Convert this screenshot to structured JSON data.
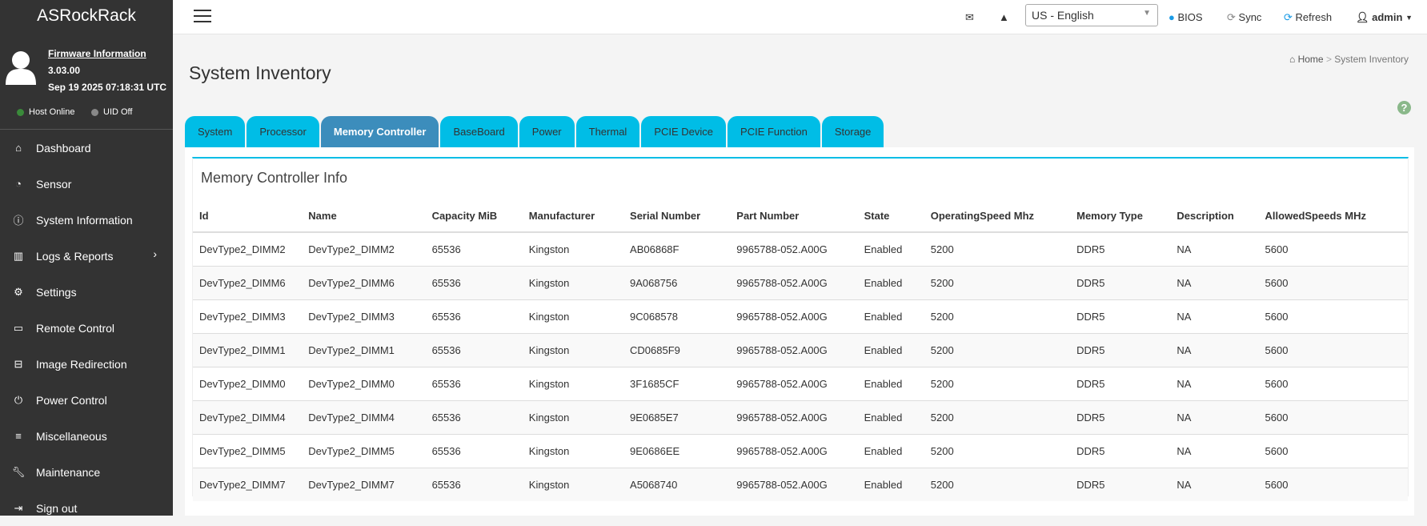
{
  "brand": "ASRockRack",
  "firmware": {
    "label": "Firmware Information",
    "version": "3.03.00",
    "date": "Sep 19 2025 07:18:31 UTC"
  },
  "status": {
    "host": "Host Online",
    "host_color": "#3a8a3a",
    "uid": "UID Off",
    "uid_color": "#888888"
  },
  "sidebar": {
    "items": [
      {
        "label": "Dashboard",
        "icon": "home-icon"
      },
      {
        "label": "Sensor",
        "icon": "gauge-icon"
      },
      {
        "label": "System Information",
        "icon": "info-icon"
      },
      {
        "label": "Logs & Reports",
        "icon": "bar-chart-icon"
      },
      {
        "label": "Settings",
        "icon": "gear-icon"
      },
      {
        "label": "Remote Control",
        "icon": "monitor-icon"
      },
      {
        "label": "Image Redirection",
        "icon": "drive-icon"
      },
      {
        "label": "Power Control",
        "icon": "power-icon"
      },
      {
        "label": "Miscellaneous",
        "icon": "list-icon"
      },
      {
        "label": "Maintenance",
        "icon": "wrench-icon"
      },
      {
        "label": "Sign out",
        "icon": "sign-out-icon"
      }
    ]
  },
  "header": {
    "language": "US - English",
    "bios": "BIOS",
    "sync": "Sync",
    "refresh": "Refresh",
    "user": "admin"
  },
  "page": {
    "title": "System Inventory",
    "breadcrumb": [
      "Home",
      "System Inventory"
    ]
  },
  "tabs": [
    "System",
    "Processor",
    "Memory Controller",
    "BaseBoard",
    "Power",
    "Thermal",
    "PCIE Device",
    "PCIE Function",
    "Storage"
  ],
  "active_tab": "Memory Controller",
  "panel": {
    "title": "Memory Controller Info"
  },
  "table": {
    "columns": [
      "Id",
      "Name",
      "Capacity MiB",
      "Manufacturer",
      "Serial Number",
      "Part Number",
      "State",
      "OperatingSpeed Mhz",
      "Memory Type",
      "Description",
      "AllowedSpeeds MHz"
    ],
    "rows": [
      [
        "DevType2_DIMM2",
        "DevType2_DIMM2",
        "65536",
        "Kingston",
        "AB06868F",
        "9965788-052.A00G",
        "Enabled",
        "5200",
        "DDR5",
        "NA",
        "5600"
      ],
      [
        "DevType2_DIMM6",
        "DevType2_DIMM6",
        "65536",
        "Kingston",
        "9A068756",
        "9965788-052.A00G",
        "Enabled",
        "5200",
        "DDR5",
        "NA",
        "5600"
      ],
      [
        "DevType2_DIMM3",
        "DevType2_DIMM3",
        "65536",
        "Kingston",
        "9C068578",
        "9965788-052.A00G",
        "Enabled",
        "5200",
        "DDR5",
        "NA",
        "5600"
      ],
      [
        "DevType2_DIMM1",
        "DevType2_DIMM1",
        "65536",
        "Kingston",
        "CD0685F9",
        "9965788-052.A00G",
        "Enabled",
        "5200",
        "DDR5",
        "NA",
        "5600"
      ],
      [
        "DevType2_DIMM0",
        "DevType2_DIMM0",
        "65536",
        "Kingston",
        "3F1685CF",
        "9965788-052.A00G",
        "Enabled",
        "5200",
        "DDR5",
        "NA",
        "5600"
      ],
      [
        "DevType2_DIMM4",
        "DevType2_DIMM4",
        "65536",
        "Kingston",
        "9E0685E7",
        "9965788-052.A00G",
        "Enabled",
        "5200",
        "DDR5",
        "NA",
        "5600"
      ],
      [
        "DevType2_DIMM5",
        "DevType2_DIMM5",
        "65536",
        "Kingston",
        "9E0686EE",
        "9965788-052.A00G",
        "Enabled",
        "5200",
        "DDR5",
        "NA",
        "5600"
      ],
      [
        "DevType2_DIMM7",
        "DevType2_DIMM7",
        "65536",
        "Kingston",
        "A5068740",
        "9965788-052.A00G",
        "Enabled",
        "5200",
        "DDR5",
        "NA",
        "5600"
      ]
    ]
  }
}
